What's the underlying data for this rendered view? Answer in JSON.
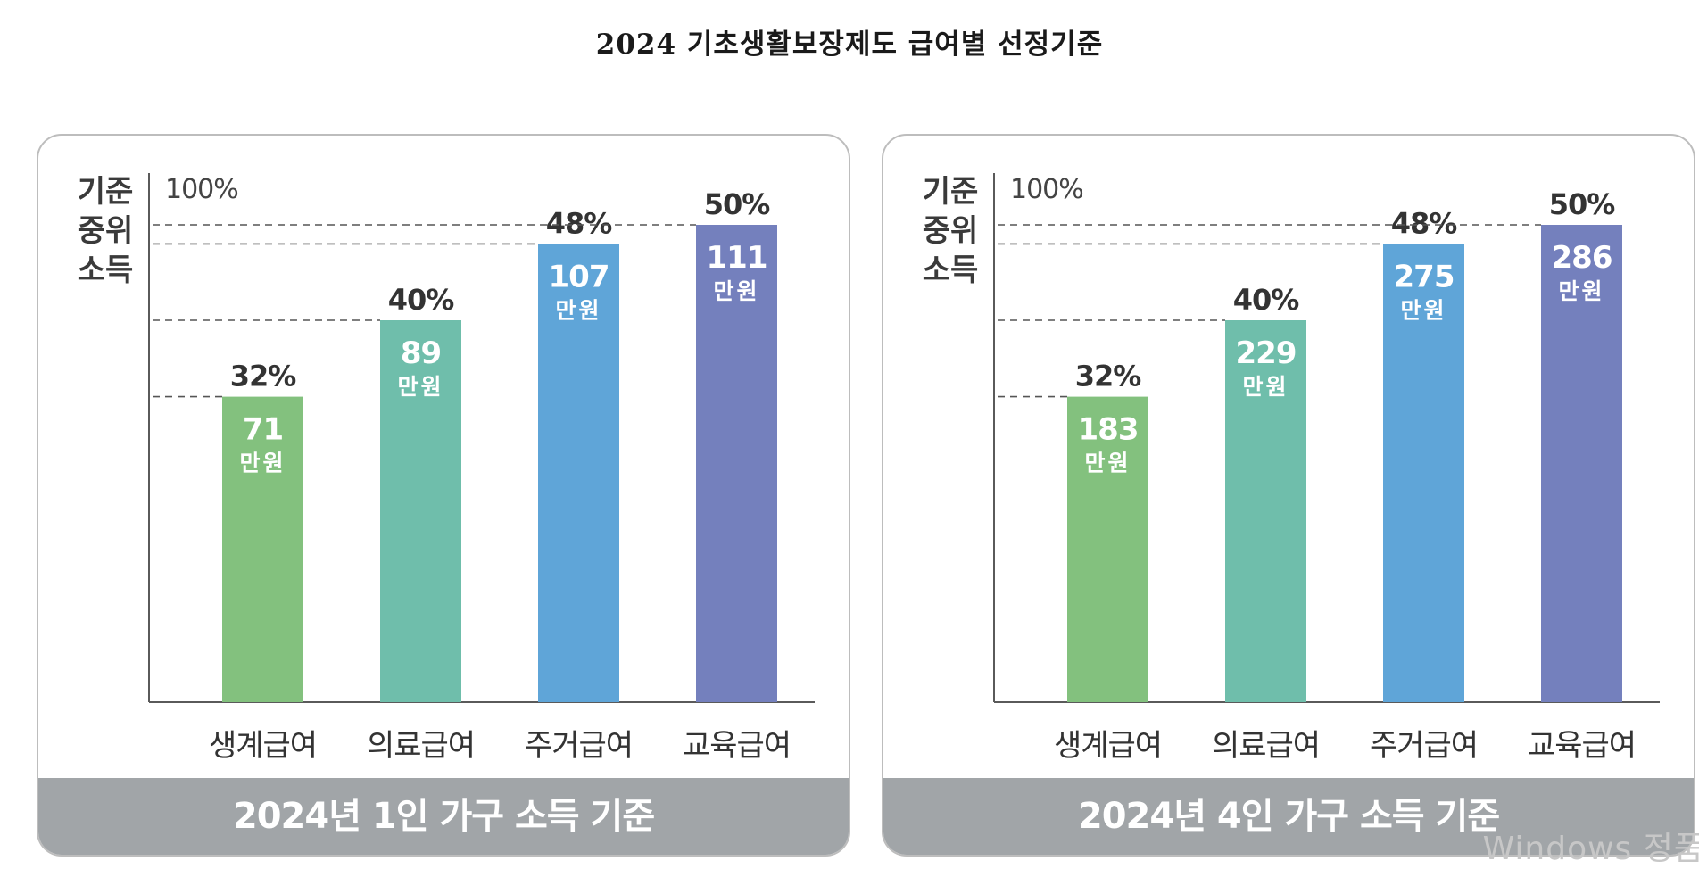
{
  "page_title": "2024 기초생활보장제도 급여별 선정기준",
  "colors": {
    "living": "#83c17e",
    "medical": "#6fbeab",
    "housing": "#5fa5d8",
    "education": "#7480bd",
    "footer": "#a1a5a8",
    "axis": "#5a5a5a",
    "text": "#333333"
  },
  "chart_data": [
    {
      "type": "bar",
      "y_axis_label": [
        "기준",
        "중위",
        "소득"
      ],
      "y_top_label": "100%",
      "ylim": [
        0,
        100
      ],
      "categories": [
        "생계급여",
        "의료급여",
        "주거급여",
        "교육급여"
      ],
      "percent_labels": [
        "32%",
        "40%",
        "48%",
        "50%"
      ],
      "values": [
        32,
        40,
        48,
        50
      ],
      "amounts": [
        "71",
        "89",
        "107",
        "111"
      ],
      "unit": "만원",
      "footer": "2024년 1인 가구 소득 기준"
    },
    {
      "type": "bar",
      "y_axis_label": [
        "기준",
        "중위",
        "소득"
      ],
      "y_top_label": "100%",
      "ylim": [
        0,
        100
      ],
      "categories": [
        "생계급여",
        "의료급여",
        "주거급여",
        "교육급여"
      ],
      "percent_labels": [
        "32%",
        "40%",
        "48%",
        "50%"
      ],
      "values": [
        32,
        40,
        48,
        50
      ],
      "amounts": [
        "183",
        "229",
        "275",
        "286"
      ],
      "unit": "만원",
      "footer": "2024년 4인 가구 소득 기준"
    }
  ],
  "watermark": "Windows 정품"
}
